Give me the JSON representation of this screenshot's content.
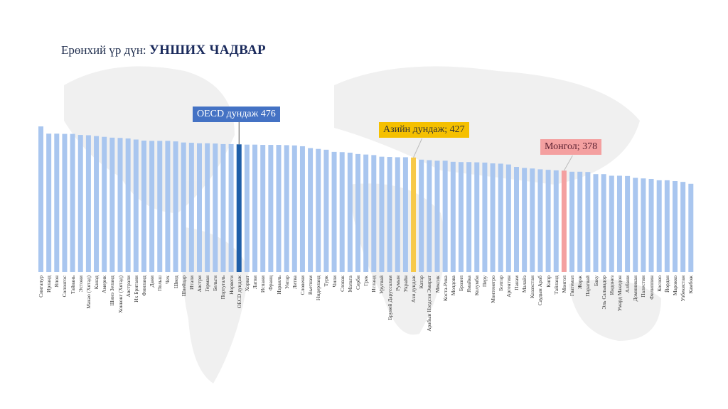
{
  "title": {
    "prefix": "Ерөнхий үр дүн:",
    "main": "УНШИХ ЧАДВАР"
  },
  "callouts": {
    "oecd": "OECD дундаж 476",
    "asia": "Азийн дундаж; 427",
    "mongolia": "Монгол; 378"
  },
  "chart_data": {
    "type": "bar",
    "title": "",
    "xlabel": "",
    "ylabel": "",
    "ylim": [
      0,
      560
    ],
    "grid": false,
    "colors": {
      "default": "#a9c6ef",
      "oecd": "#1f5fa8",
      "asia": "#f7c948",
      "mongolia": "#f4a0a0"
    },
    "highlight": {
      "oecd": "OECD дундаж",
      "asia": "Ази дундаж",
      "mongolia": "Монгол"
    },
    "categories": [
      "Сингапур",
      "Ирланд",
      "Япон",
      "Солонгос",
      "Тайвань",
      "Эстони",
      "Макао (Хятад)",
      "Канад",
      "Америк",
      "Шинэ Зеланд",
      "Хонконг (Хятад)",
      "Австрали",
      "Их Британи",
      "Финланд",
      "Дани",
      "Польш",
      "Чех",
      "Швед",
      "Швейцар",
      "Итали",
      "Австри",
      "Герман",
      "Бельги",
      "Португаль",
      "Норвеги",
      "OECD дундаж",
      "Хорват",
      "Латви",
      "Испани",
      "Франц",
      "Израиль",
      "Унгар",
      "Литва",
      "Словени",
      "Вьетнам",
      "Нидерланд",
      "Турк",
      "Чили",
      "Словак",
      "Мальта",
      "Серби",
      "Грек",
      "Исланд",
      "Уругвай",
      "Бруней Даруссалам",
      "Румын",
      "Украйн",
      "Ази дундаж",
      "Катар",
      "Арабын Нэгдсэн Эмират",
      "Мексик",
      "Коста-Рика",
      "Молдова",
      "Бразил",
      "Ямайка",
      "Колумби",
      "Перу",
      "Монтенегро",
      "Болгар",
      "Аргентин",
      "Панам",
      "Малайз",
      "Казахстан",
      "Саудын Араб",
      "Кипр",
      "Тайланд",
      "Монгол",
      "Гватемал",
      "Жорж",
      "Парагвай",
      "Баку",
      "Эль Сальвадор",
      "Индонез",
      "Умард Македон",
      "Албани",
      "Доминикан",
      "Палестин",
      "Филиппин",
      "Косово",
      "Йордан",
      "Марокко",
      "Узбекистан",
      "Камбож"
    ],
    "values": [
      543,
      516,
      516,
      515,
      515,
      511,
      510,
      507,
      504,
      501,
      500,
      498,
      494,
      490,
      489,
      489,
      489,
      487,
      483,
      482,
      480,
      480,
      479,
      477,
      477,
      476,
      475,
      475,
      474,
      474,
      474,
      473,
      472,
      469,
      462,
      459,
      456,
      448,
      447,
      445,
      440,
      438,
      436,
      430,
      429,
      428,
      428,
      427,
      419,
      417,
      415,
      415,
      411,
      410,
      410,
      409,
      408,
      405,
      404,
      401,
      392,
      388,
      386,
      383,
      381,
      379,
      378,
      374,
      374,
      373,
      365,
      365,
      359,
      359,
      358,
      351,
      349,
      347,
      342,
      342,
      339,
      336,
      329
    ]
  }
}
